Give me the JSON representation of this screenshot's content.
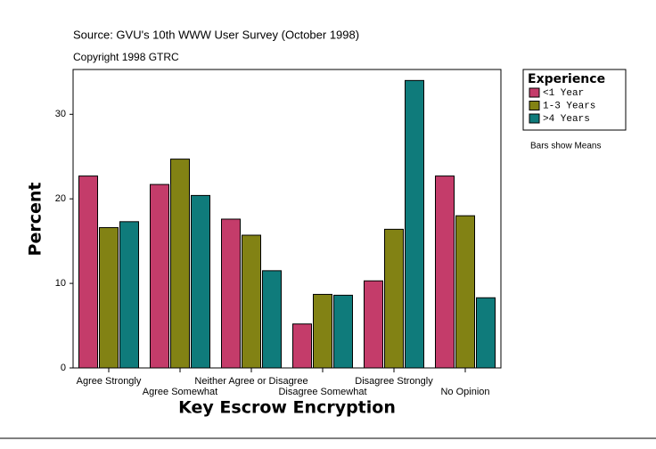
{
  "chart_data": {
    "type": "bar",
    "source": "Source: GVU's 10th WWW User Survey (October 1998)",
    "copyright": "Copyright 1998 GTRC",
    "x_label": "Key Escrow Encryption",
    "y_label": "Percent",
    "legend_title": "Experience",
    "note": "Bars show Means",
    "categories": [
      "Agree Strongly",
      "Agree Somewhat",
      "Neither Agree or Disagree",
      "Disagree Somewhat",
      "Disagree Strongly",
      "No Opinion"
    ],
    "series": [
      {
        "name": "<1 Year",
        "color": "#c43c6a",
        "values": [
          22.7,
          21.7,
          17.6,
          5.2,
          10.3,
          22.7
        ]
      },
      {
        "name": "1-3 Years",
        "color": "#828214",
        "values": [
          16.6,
          24.7,
          15.7,
          8.7,
          16.4,
          18.0
        ]
      },
      {
        "name": ">4 Years",
        "color": "#0f7b7b",
        "values": [
          17.3,
          20.4,
          11.5,
          8.6,
          34.0,
          8.3
        ]
      }
    ],
    "ylim": [
      0,
      35.3
    ],
    "yticks": [
      0,
      10,
      20,
      30
    ],
    "legend_position": "right"
  }
}
